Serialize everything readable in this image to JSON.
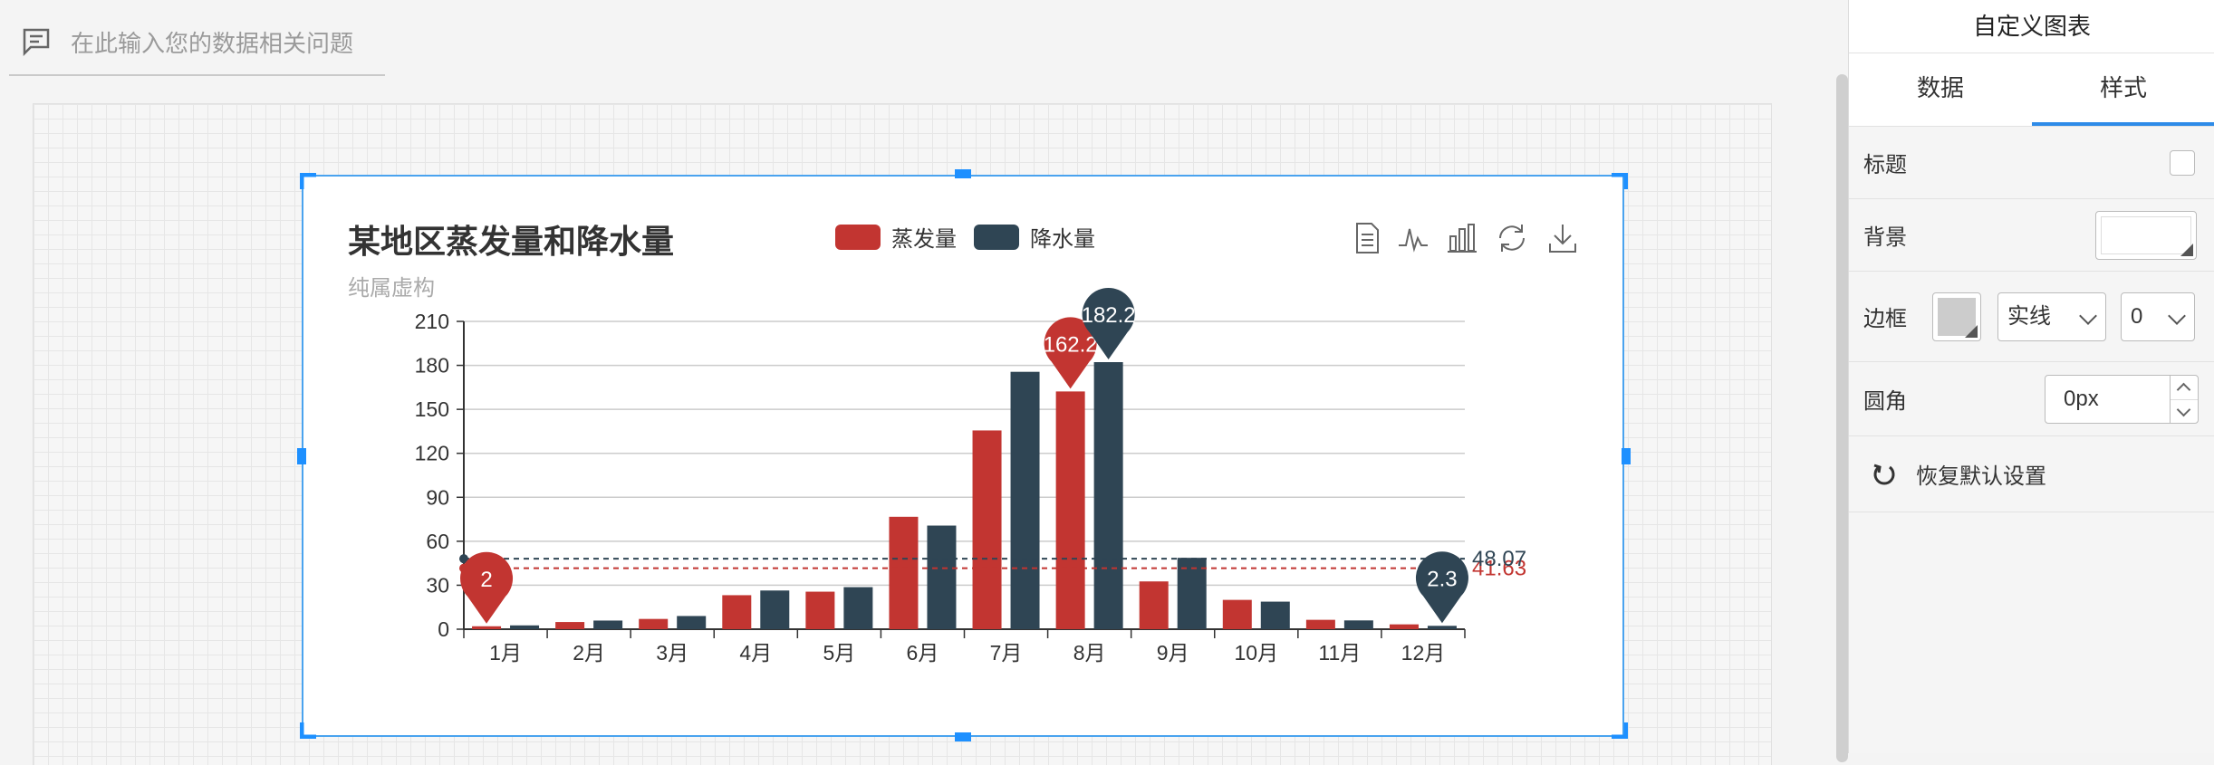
{
  "query": {
    "placeholder": "在此输入您的数据相关问题"
  },
  "chart_title": "某地区蒸发量和降水量",
  "chart_subtitle": "纯属虚构",
  "chart_data": {
    "type": "bar",
    "title": "某地区蒸发量和降水量",
    "subtitle": "纯属虚构",
    "categories": [
      "1月",
      "2月",
      "3月",
      "4月",
      "5月",
      "6月",
      "7月",
      "8月",
      "9月",
      "10月",
      "11月",
      "12月"
    ],
    "ylim": [
      0,
      210
    ],
    "yticks": [
      0,
      30,
      60,
      90,
      120,
      150,
      180,
      210
    ],
    "series": [
      {
        "name": "蒸发量",
        "color": "#c23531",
        "values": [
          2.0,
          4.9,
          7.0,
          23.2,
          25.6,
          76.7,
          135.6,
          162.2,
          32.6,
          20.0,
          6.4,
          3.3
        ],
        "mark_points": [
          {
            "label": "162.2",
            "index": 7,
            "value": 162.2
          },
          {
            "label": "2",
            "index": 0,
            "value": 2.0
          }
        ],
        "mark_line": {
          "label": "41.63",
          "value": 41.63
        }
      },
      {
        "name": "降水量",
        "color": "#2f4554",
        "values": [
          2.6,
          5.9,
          9.0,
          26.4,
          28.7,
          70.7,
          175.6,
          182.2,
          48.7,
          18.8,
          6.0,
          2.3
        ],
        "mark_points": [
          {
            "label": "182.2",
            "index": 7,
            "value": 182.2
          },
          {
            "label": "2.3",
            "index": 11,
            "value": 2.3
          }
        ],
        "mark_line": {
          "label": "48.07",
          "value": 48.07
        }
      }
    ],
    "legend_position": "top-center",
    "grid": true
  },
  "toolbox": [
    "data-view-icon",
    "line-chart-icon",
    "bar-chart-icon",
    "restore-icon",
    "download-icon"
  ],
  "panel": {
    "title": "自定义图表",
    "tabs": [
      "数据",
      "样式"
    ],
    "active_tab": "样式",
    "title_label": "标题",
    "background_label": "背景",
    "border_label": "边框",
    "border_style": "实线",
    "border_width": "0",
    "radius_label": "圆角",
    "radius_value": "0px",
    "reset_label": "恢复默认设置"
  }
}
